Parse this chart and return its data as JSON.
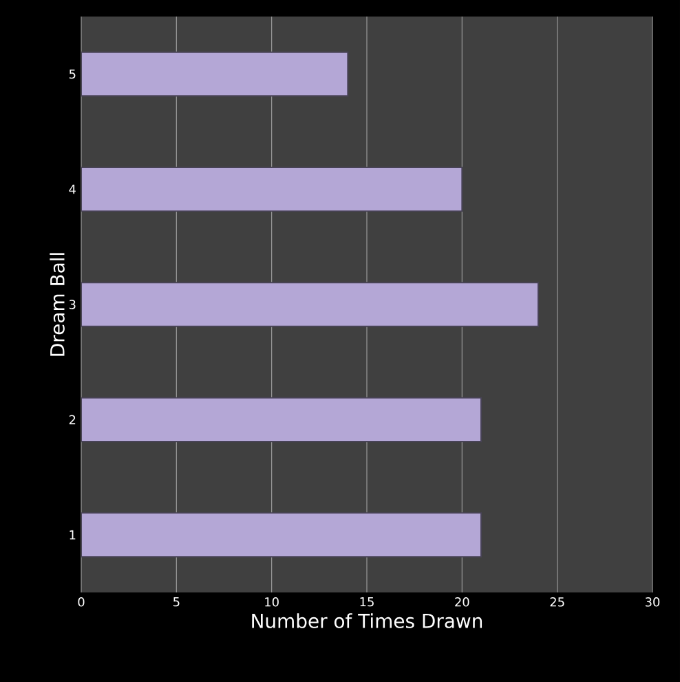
{
  "chart_data": {
    "type": "bar",
    "orientation": "horizontal",
    "xlabel": "Number of Times Drawn",
    "ylabel": "Dream Ball",
    "categories": [
      "5",
      "4",
      "3",
      "2",
      "1"
    ],
    "values": [
      14,
      20,
      24,
      21,
      21
    ],
    "color": "#b4a7d6",
    "xlim": [
      0,
      30
    ],
    "xticks": [
      0,
      5,
      10,
      15,
      20,
      25,
      30
    ],
    "grid": "x"
  }
}
